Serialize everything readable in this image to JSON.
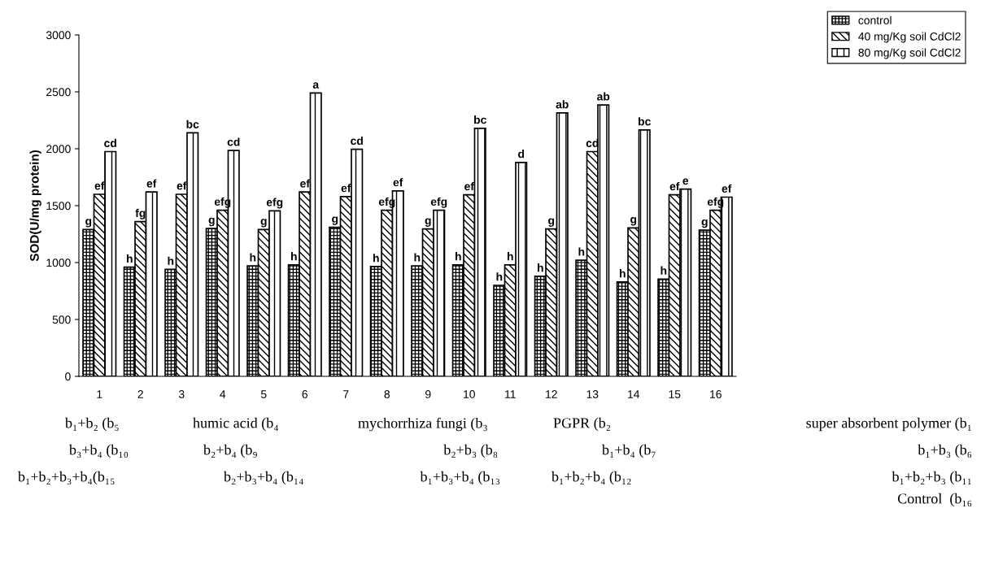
{
  "chart_data": {
    "type": "bar",
    "ylabel": "SOD(U/mg protein)",
    "categories": [
      "1",
      "2",
      "3",
      "4",
      "5",
      "6",
      "7",
      "8",
      "9",
      "10",
      "11",
      "12",
      "13",
      "14",
      "15",
      "16"
    ],
    "series": [
      {
        "name": "control",
        "color": "#000000",
        "values": [
          1290,
          960,
          940,
          1300,
          970,
          980,
          1310,
          965,
          970,
          980,
          800,
          880,
          1020,
          830,
          855,
          1285
        ],
        "value_labels": [
          "g",
          "h",
          "h",
          "g",
          "h",
          "h",
          "g",
          "h",
          "h",
          "h",
          "h",
          "h",
          "h",
          "h",
          "h",
          "g"
        ]
      },
      {
        "name": "40 mg/Kg soil CdCl2",
        "color": "#000000",
        "values": [
          1600,
          1360,
          1600,
          1460,
          1290,
          1620,
          1580,
          1460,
          1295,
          1595,
          980,
          1295,
          1975,
          1305,
          1595,
          1460
        ],
        "value_labels": [
          "ef",
          "fg",
          "ef",
          "efg",
          "g",
          "ef",
          "ef",
          "efg",
          "g",
          "ef",
          "h",
          "g",
          "cd",
          "g",
          "ef",
          "efg"
        ]
      },
      {
        "name": "80 mg/Kg soil CdCl2",
        "color": "#000000",
        "values": [
          1975,
          1620,
          2140,
          1985,
          1455,
          2490,
          1995,
          1630,
          1460,
          2180,
          1880,
          2315,
          2385,
          2165,
          1645,
          1575
        ],
        "value_labels": [
          "cd",
          "ef",
          "bc",
          "cd",
          "efg",
          "a",
          "cd",
          "ef",
          "efg",
          "bc",
          "d",
          "ab",
          "ab",
          "bc",
          "e",
          "ef"
        ]
      }
    ],
    "ylim": [
      0,
      3000
    ],
    "yticks": [
      0,
      500,
      1000,
      1500,
      2000,
      2500,
      3000
    ],
    "grid": false,
    "legend": "top right",
    "annotations": [
      "b₁+b₂ (b₅",
      "humic acid (b₄",
      "mychorrhiza fungi (b₃",
      "PGPR (b₂",
      "super absorbent polymer (b₁",
      "b₃+b₄ (b₁₀",
      "b₂+b₄ (b₉",
      "b₂+b₃ (b₈",
      "b₁+b₄ (b₇",
      "b₁+b₃ (b₆",
      "b₁+b₂+b₃+b₄(b₁₅",
      "b₂+b₃+b₄ (b₁₄",
      "b₁+b₃+b₄ (b₁₃",
      "b₁+b₂+b₄ (b₁₂",
      "b₁+b₂+b₃ (b₁₁",
      "Control  (b₁₆"
    ]
  }
}
